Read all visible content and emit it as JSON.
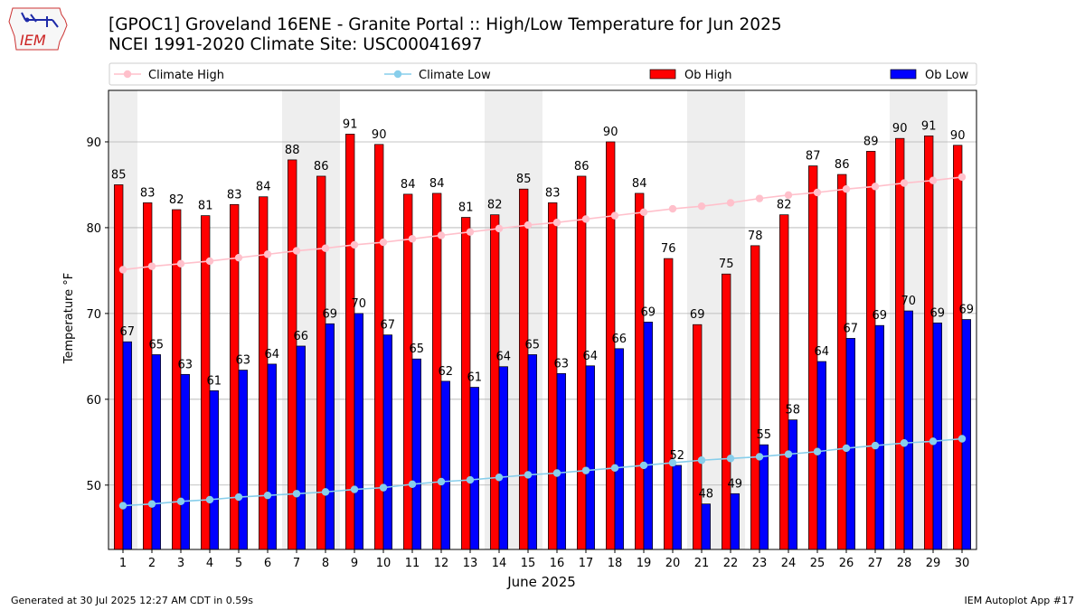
{
  "logo": {
    "text": "IEM"
  },
  "title": {
    "line1": "[GPOC1] Groveland 16ENE - Granite Portal :: High/Low Temperature for Jun 2025",
    "line2": "NCEI 1991-2020 Climate Site: USC00041697"
  },
  "footer": {
    "left": "Generated at 30 Jul 2025 12:27 AM CDT in 0.59s",
    "right": "IEM Autoplot App #17"
  },
  "colors": {
    "ob_high": "#ff0000",
    "ob_low": "#0000ff",
    "climate_high": "#ffc0cb",
    "climate_low": "#87ceeb",
    "weekend_band": "#eeeeee",
    "grid": "#b0b0b0"
  },
  "chart_data": {
    "type": "bar",
    "xlabel": "June 2025",
    "ylabel": "Temperature °F",
    "ylim": [
      42.5,
      96
    ],
    "yticks": [
      50,
      60,
      70,
      80,
      90
    ],
    "grid": "horizontal",
    "legend_placement": "top",
    "categories": [
      1,
      2,
      3,
      4,
      5,
      6,
      7,
      8,
      9,
      10,
      11,
      12,
      13,
      14,
      15,
      16,
      17,
      18,
      19,
      20,
      21,
      22,
      23,
      24,
      25,
      26,
      27,
      28,
      29,
      30
    ],
    "weekend_days": [
      1,
      7,
      8,
      14,
      15,
      21,
      22,
      28,
      29
    ],
    "series": [
      {
        "name": "Ob High",
        "kind": "bar",
        "values": [
          85.0,
          82.9,
          82.1,
          81.4,
          82.7,
          83.6,
          87.9,
          86.0,
          90.9,
          89.7,
          83.9,
          84.0,
          81.2,
          81.5,
          84.5,
          82.9,
          86.0,
          90.0,
          84.0,
          76.4,
          68.7,
          74.6,
          77.9,
          81.5,
          87.2,
          86.2,
          88.9,
          90.4,
          90.7,
          89.6
        ],
        "labels": [
          "85",
          "83",
          "82",
          "81",
          "83",
          "84",
          "88",
          "86",
          "91",
          "90",
          "84",
          "84",
          "81",
          "82",
          "85",
          "83",
          "86",
          "90",
          "84",
          "76",
          "69",
          "75",
          "78",
          "82",
          "87",
          "86",
          "89",
          "90",
          "91",
          "90"
        ]
      },
      {
        "name": "Ob Low",
        "kind": "bar",
        "values": [
          66.7,
          65.2,
          62.9,
          61.0,
          63.4,
          64.1,
          66.2,
          68.8,
          70.0,
          67.5,
          64.7,
          62.1,
          61.4,
          63.8,
          65.2,
          63.0,
          63.9,
          65.9,
          69.0,
          52.3,
          47.8,
          49.0,
          54.7,
          57.6,
          64.4,
          67.1,
          68.6,
          70.3,
          68.9,
          69.3
        ],
        "labels": [
          "67",
          "65",
          "63",
          "61",
          "63",
          "64",
          "66",
          "69",
          "70",
          "67",
          "65",
          "62",
          "61",
          "64",
          "65",
          "63",
          "64",
          "66",
          "69",
          "52",
          "48",
          "49",
          "55",
          "58",
          "64",
          "67",
          "69",
          "70",
          "69",
          "69"
        ]
      },
      {
        "name": "Climate High",
        "kind": "line",
        "values": [
          75.1,
          75.5,
          75.8,
          76.1,
          76.5,
          76.9,
          77.3,
          77.6,
          78.0,
          78.3,
          78.7,
          79.1,
          79.5,
          79.9,
          80.3,
          80.6,
          81.0,
          81.4,
          81.8,
          82.2,
          82.5,
          82.9,
          83.4,
          83.8,
          84.1,
          84.5,
          84.8,
          85.2,
          85.5,
          85.9
        ]
      },
      {
        "name": "Climate Low",
        "kind": "line",
        "values": [
          47.6,
          47.8,
          48.1,
          48.3,
          48.6,
          48.8,
          49.0,
          49.2,
          49.5,
          49.7,
          50.1,
          50.4,
          50.6,
          50.9,
          51.2,
          51.4,
          51.7,
          52.0,
          52.3,
          52.6,
          52.9,
          53.1,
          53.3,
          53.6,
          53.9,
          54.3,
          54.6,
          54.9,
          55.1,
          55.4
        ]
      }
    ]
  }
}
